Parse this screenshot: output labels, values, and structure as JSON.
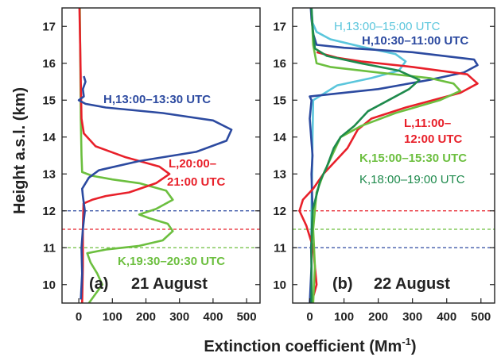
{
  "figure": {
    "ylabel": "Height a.s.l. (km)",
    "xlabel": "Extinction coefficient (Mm",
    "xlabel_sup": "-1",
    "xlabel_close": ")"
  },
  "chart_data": [
    {
      "type": "line",
      "panel_label": "(a)",
      "date_label": "21 August",
      "xlim": [
        -50,
        540
      ],
      "ylim": [
        9.5,
        17.5
      ],
      "x_ticks": [
        0,
        100,
        200,
        300,
        400,
        500
      ],
      "y_ticks": [
        10,
        11,
        12,
        13,
        14,
        15,
        16,
        17
      ],
      "grid": false,
      "series": [
        {
          "name": "K,19:30–20:30 UTC",
          "color": "#6cbf3f",
          "points": [
            [
              30,
              9.5
            ],
            [
              50,
              9.75
            ],
            [
              70,
              10.0
            ],
            [
              55,
              10.3
            ],
            [
              35,
              10.6
            ],
            [
              25,
              10.85
            ],
            [
              80,
              10.95
            ],
            [
              180,
              11.05
            ],
            [
              250,
              11.2
            ],
            [
              280,
              11.45
            ],
            [
              265,
              11.65
            ],
            [
              210,
              11.8
            ],
            [
              180,
              11.9
            ],
            [
              230,
              12.05
            ],
            [
              280,
              12.3
            ],
            [
              260,
              12.55
            ],
            [
              180,
              12.75
            ],
            [
              100,
              12.85
            ],
            [
              40,
              12.95
            ],
            [
              10,
              13.05
            ],
            [
              8,
              13.5
            ],
            [
              6,
              14.5
            ],
            [
              5,
              15.5
            ],
            [
              3,
              17.5
            ]
          ]
        },
        {
          "name": "L,20:00–21:00 UTC",
          "color": "#e8202a",
          "points": [
            [
              10,
              9.5
            ],
            [
              12,
              10.5
            ],
            [
              12,
              11.5
            ],
            [
              14,
              12.2
            ],
            [
              40,
              12.3
            ],
            [
              80,
              12.4
            ],
            [
              150,
              12.5
            ],
            [
              230,
              12.75
            ],
            [
              270,
              13.0
            ],
            [
              240,
              13.2
            ],
            [
              140,
              13.45
            ],
            [
              50,
              13.75
            ],
            [
              15,
              14.1
            ],
            [
              8,
              14.5
            ],
            [
              6,
              15.5
            ],
            [
              4,
              16.5
            ],
            [
              2,
              17.5
            ]
          ]
        },
        {
          "name": "H,13:00–13:30 UTC",
          "color": "#2c4aa0",
          "points": [
            [
              6,
              9.6
            ],
            [
              10,
              10.3
            ],
            [
              8,
              11.0
            ],
            [
              12,
              11.5
            ],
            [
              18,
              12.0
            ],
            [
              12,
              12.4
            ],
            [
              10,
              12.6
            ],
            [
              30,
              12.9
            ],
            [
              60,
              13.1
            ],
            [
              180,
              13.35
            ],
            [
              350,
              13.6
            ],
            [
              440,
              13.9
            ],
            [
              455,
              14.2
            ],
            [
              400,
              14.45
            ],
            [
              250,
              14.65
            ],
            [
              80,
              14.8
            ],
            [
              20,
              14.9
            ],
            [
              0,
              15.0
            ],
            [
              15,
              15.1
            ],
            [
              12,
              15.3
            ],
            [
              20,
              15.5
            ],
            [
              15,
              15.65
            ]
          ]
        }
      ],
      "series_labels": [
        {
          "text": "H,13:00–13:30 UTC",
          "color": "#2c4aa0"
        },
        {
          "text": "L,20:00–",
          "color": "#e8202a"
        },
        {
          "text": "21:00 UTC",
          "color": "#e8202a"
        },
        {
          "text": "K,19:30–20:30 UTC",
          "color": "#6cbf3f"
        }
      ],
      "reference_lines": [
        {
          "y": 12.0,
          "color": "#2c4aa0"
        },
        {
          "y": 11.5,
          "color": "#e8202a"
        },
        {
          "y": 11.0,
          "color": "#6cbf3f"
        }
      ]
    },
    {
      "type": "line",
      "panel_label": "(b)",
      "date_label": "22 August",
      "xlim": [
        -50,
        540
      ],
      "ylim": [
        9.5,
        17.5
      ],
      "x_ticks": [
        0,
        100,
        200,
        300,
        400,
        500
      ],
      "y_ticks": [
        10,
        11,
        12,
        13,
        14,
        15,
        16,
        17
      ],
      "grid": false,
      "series": [
        {
          "name": "H,13:00–15:00 UTC",
          "color": "#5bc6dc",
          "points": [
            [
              5,
              9.5
            ],
            [
              5,
              12.0
            ],
            [
              8,
              14.0
            ],
            [
              10,
              15.0
            ],
            [
              80,
              15.4
            ],
            [
              180,
              15.6
            ],
            [
              260,
              15.8
            ],
            [
              280,
              16.05
            ],
            [
              250,
              16.25
            ],
            [
              150,
              16.45
            ],
            [
              60,
              16.65
            ],
            [
              20,
              16.85
            ],
            [
              8,
              17.1
            ],
            [
              5,
              17.5
            ]
          ]
        },
        {
          "name": "H,10:30–11:00 UTC",
          "color": "#2c4aa0",
          "points": [
            [
              0,
              9.5
            ],
            [
              5,
              10.5
            ],
            [
              4,
              11.0
            ],
            [
              8,
              12.0
            ],
            [
              5,
              13.0
            ],
            [
              8,
              13.5
            ],
            [
              0,
              14.5
            ],
            [
              5,
              15.0
            ],
            [
              0,
              15.1
            ],
            [
              200,
              15.3
            ],
            [
              350,
              15.55
            ],
            [
              450,
              15.75
            ],
            [
              490,
              15.95
            ],
            [
              480,
              16.1
            ],
            [
              300,
              16.3
            ],
            [
              100,
              16.42
            ],
            [
              20,
              16.5
            ],
            [
              10,
              16.8
            ],
            [
              5,
              17.2
            ],
            [
              3,
              17.5
            ]
          ]
        },
        {
          "name": "L,11:00–12:00 UTC",
          "color": "#e8202a",
          "points": [
            [
              5,
              9.5
            ],
            [
              20,
              10.0
            ],
            [
              10,
              11.0
            ],
            [
              -10,
              11.6
            ],
            [
              -30,
              12.0
            ],
            [
              -20,
              12.3
            ],
            [
              10,
              12.6
            ],
            [
              40,
              13.0
            ],
            [
              80,
              13.4
            ],
            [
              110,
              13.7
            ],
            [
              140,
              14.2
            ],
            [
              180,
              14.5
            ],
            [
              280,
              14.8
            ],
            [
              360,
              15.0
            ],
            [
              440,
              15.2
            ],
            [
              490,
              15.45
            ],
            [
              460,
              15.7
            ],
            [
              300,
              15.9
            ],
            [
              150,
              16.05
            ],
            [
              80,
              16.15
            ],
            [
              20,
              16.3
            ]
          ]
        },
        {
          "name": "K,15:00–15:30 UTC",
          "color": "#6cbf3f",
          "points": [
            [
              10,
              9.5
            ],
            [
              15,
              10.5
            ],
            [
              10,
              11.5
            ],
            [
              20,
              12.5
            ],
            [
              40,
              13.0
            ],
            [
              60,
              13.4
            ],
            [
              80,
              13.8
            ],
            [
              90,
              14.0
            ],
            [
              150,
              14.3
            ],
            [
              250,
              14.65
            ],
            [
              380,
              15.0
            ],
            [
              440,
              15.25
            ],
            [
              420,
              15.45
            ],
            [
              350,
              15.6
            ],
            [
              200,
              15.75
            ],
            [
              60,
              15.9
            ],
            [
              20,
              16.0
            ],
            [
              10,
              16.5
            ],
            [
              5,
              17.5
            ]
          ]
        },
        {
          "name": "K,18:00–19:00 UTC",
          "color": "#1e8a4c",
          "points": [
            [
              5,
              9.5
            ],
            [
              5,
              11.0
            ],
            [
              8,
              12.0
            ],
            [
              30,
              12.8
            ],
            [
              50,
              13.2
            ],
            [
              70,
              13.7
            ],
            [
              90,
              14.0
            ],
            [
              130,
              14.3
            ],
            [
              170,
              14.7
            ],
            [
              230,
              15.0
            ],
            [
              290,
              15.3
            ],
            [
              320,
              15.55
            ],
            [
              260,
              15.8
            ],
            [
              150,
              16.0
            ],
            [
              50,
              16.2
            ],
            [
              15,
              16.4
            ],
            [
              8,
              17.0
            ],
            [
              5,
              17.5
            ]
          ]
        }
      ],
      "series_labels": [
        {
          "text": "H,13:00–15:00 UTC",
          "color": "#5bc6dc"
        },
        {
          "text": "H,10:30–11:00 UTC",
          "color": "#2c4aa0"
        },
        {
          "text": "L,11:00–",
          "color": "#e8202a"
        },
        {
          "text": "12:00 UTC",
          "color": "#e8202a"
        },
        {
          "text": "K,15:00–15:30 UTC",
          "color": "#6cbf3f"
        },
        {
          "text": "K,18:00–19:00 UTC",
          "color": "#1e8a4c"
        }
      ],
      "reference_lines": [
        {
          "y": 12.0,
          "color": "#e8202a"
        },
        {
          "y": 11.5,
          "color": "#6cbf3f"
        },
        {
          "y": 11.0,
          "color": "#2c4aa0"
        }
      ]
    }
  ]
}
